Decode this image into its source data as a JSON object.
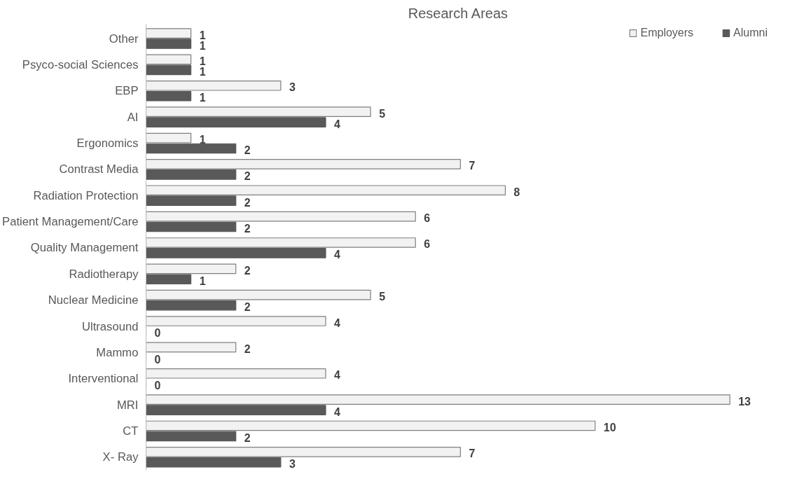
{
  "chart_data": {
    "type": "bar",
    "orientation": "horizontal",
    "title": "Research Areas",
    "categories": [
      "Other",
      "Psyco-social Sciences",
      "EBP",
      "AI",
      "Ergonomics",
      "Contrast Media",
      "Radiation Protection",
      "Patient Management/Care",
      "Quality Management",
      "Radiotherapy",
      "Nuclear Medicine",
      "Ultrasound",
      "Mammo",
      "Interventional",
      "MRI",
      "CT",
      "X- Ray"
    ],
    "series": [
      {
        "name": "Employers",
        "color": "#f2f2f2",
        "values": [
          1,
          1,
          3,
          5,
          1,
          7,
          8,
          6,
          6,
          2,
          5,
          4,
          2,
          4,
          13,
          10,
          7
        ]
      },
      {
        "name": "Alumni",
        "color": "#595959",
        "values": [
          1,
          1,
          1,
          4,
          2,
          2,
          2,
          2,
          4,
          1,
          2,
          0,
          0,
          0,
          4,
          2,
          3
        ]
      }
    ],
    "data_labels": true,
    "legend": "top right",
    "tick_labels": "y"
  }
}
